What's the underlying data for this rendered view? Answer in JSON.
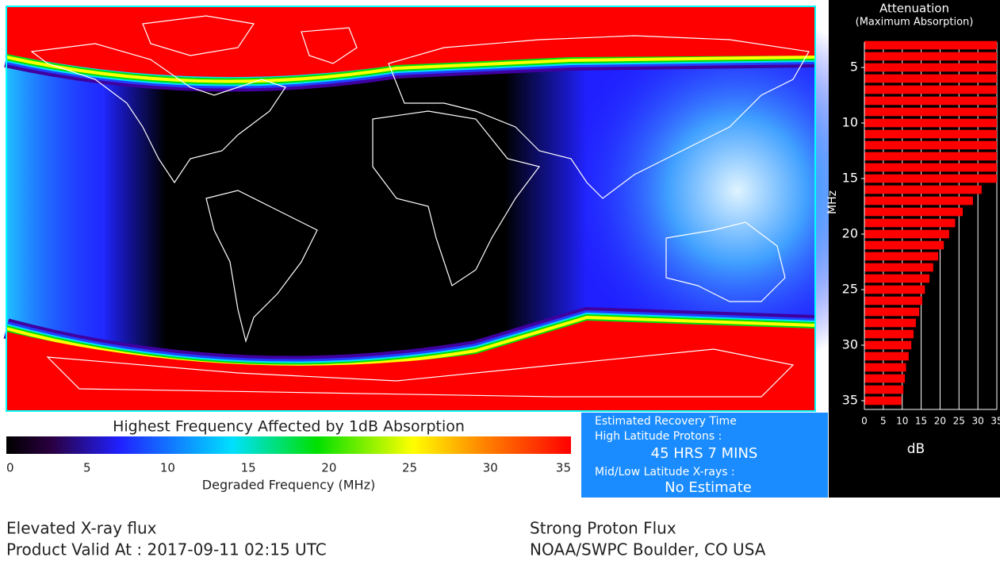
{
  "chart_data": [
    {
      "type": "colorbar",
      "title": "Highest Frequency Affected by 1dB Absorption",
      "xlabel": "Degraded Frequency (MHz)",
      "xlim": [
        0,
        35
      ],
      "xticks": [
        0,
        5,
        10,
        15,
        20,
        25,
        30,
        35
      ]
    },
    {
      "type": "hbar",
      "title": "Attenuation",
      "subtitle": "(Maximum Absorption)",
      "ylabel": "MHz",
      "xlabel": "dB",
      "color": "#ff0000",
      "y": [
        3,
        4,
        5,
        6,
        7,
        8,
        9,
        10,
        11,
        12,
        13,
        14,
        15,
        16,
        17,
        18,
        19,
        20,
        21,
        22,
        23,
        24,
        25,
        26,
        27,
        28,
        29,
        30,
        31,
        32,
        33,
        34,
        35
      ],
      "values": [
        35,
        35,
        35,
        35,
        35,
        35,
        35,
        35,
        35,
        35,
        35,
        35,
        35,
        31,
        28.7,
        26,
        24,
        22.4,
        21,
        19.5,
        18.2,
        17.2,
        16,
        15.3,
        14.5,
        13.6,
        13,
        12.4,
        11.7,
        11,
        10.7,
        10.3,
        9.8
      ],
      "xlim": [
        0,
        35
      ],
      "xticks": [
        0,
        5,
        10,
        15,
        20,
        25,
        30,
        35
      ],
      "ylim": [
        2,
        36
      ],
      "yticks": [
        5,
        10,
        15,
        20,
        25,
        30,
        35
      ],
      "grid": true
    }
  ],
  "recovery": {
    "title": "Estimated Recovery Time",
    "high_label": "High Latitude Protons :",
    "high_value": "45 HRS 7 MINS",
    "low_label": "Mid/Low Latitude X-rays :",
    "low_value": "No Estimate"
  },
  "footer": {
    "left_1": "Elevated X-ray flux",
    "left_2": "Product Valid At : 2017-09-11 02:15 UTC",
    "right_1": "Strong Proton Flux",
    "right_2": "NOAA/SWPC Boulder, CO USA"
  }
}
